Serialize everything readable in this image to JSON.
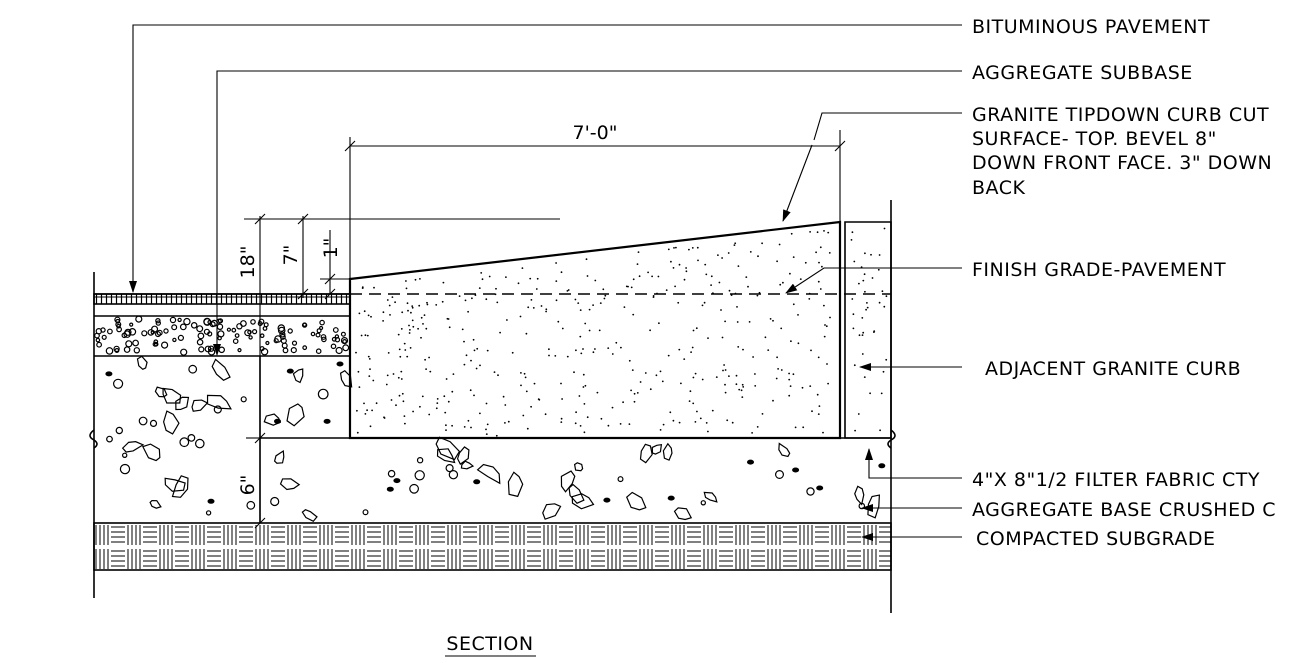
{
  "callouts": {
    "bituminous_pavement": "BITUMINOUS PAVEMENT",
    "aggregate_subbase": "AGGREGATE SUBBASE",
    "granite_curb_cut": [
      "GRANITE TIPDOWN CURB CUT",
      "SURFACE- TOP. BEVEL 8\"",
      "DOWN FRONT FACE. 3\" DOWN",
      "BACK"
    ],
    "finish_grade": "FINISH GRADE-PAVEMENT",
    "adjacent_curb": "ADJACENT GRANITE CURB",
    "filter_fabric": "4\"X 8\"1/2 FILTER FABRIC CTY",
    "aggregate_base": "AGGREGATE BASE CRUSHED C",
    "compacted_subgrade": "COMPACTED SUBGRADE"
  },
  "dimensions": {
    "width": "7'-0\"",
    "depth_total": "18\"",
    "depth_7": "7\"",
    "depth_1": "1\"",
    "depth_6": "6\""
  },
  "caption": "SECTION"
}
